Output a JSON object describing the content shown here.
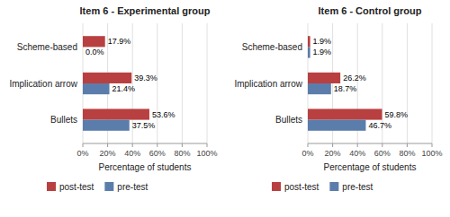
{
  "chart_data": [
    {
      "type": "bar",
      "orientation": "horizontal",
      "title": "Item 6 - Experimental group",
      "categories": [
        "Bullets",
        "Implication arrow",
        "Scheme-based"
      ],
      "series": [
        {
          "name": "post-test",
          "color": "#b94040",
          "values": [
            53.6,
            39.3,
            17.9
          ],
          "value_labels": [
            "53.6%",
            "39.3%",
            "17.9%"
          ]
        },
        {
          "name": "pre-test",
          "color": "#5b7dab",
          "values": [
            37.5,
            21.4,
            0.0
          ],
          "value_labels": [
            "37.5%",
            "21.4%",
            "0.0%"
          ]
        }
      ],
      "xlabel": "Percentage of students",
      "xlim": [
        0,
        100
      ],
      "xticks": [
        {
          "value": 0,
          "label": "0%"
        },
        {
          "value": 20,
          "label": "20%"
        },
        {
          "value": 40,
          "label": "40%"
        },
        {
          "value": 60,
          "label": "60%"
        },
        {
          "value": 80,
          "label": "80%"
        },
        {
          "value": 100,
          "label": "100%"
        }
      ],
      "grid": true,
      "legend": "bottom",
      "data_labels": true
    },
    {
      "type": "bar",
      "orientation": "horizontal",
      "title": "Item 6 - Control group",
      "categories": [
        "Bullets",
        "Implication arrow",
        "Scheme-based"
      ],
      "series": [
        {
          "name": "post-test",
          "color": "#b94040",
          "values": [
            59.8,
            26.2,
            1.9
          ],
          "value_labels": [
            "59.8%",
            "26.2%",
            "1.9%"
          ]
        },
        {
          "name": "pre-test",
          "color": "#5b7dab",
          "values": [
            46.7,
            18.7,
            1.9
          ],
          "value_labels": [
            "46.7%",
            "18.7%",
            "1.9%"
          ]
        }
      ],
      "xlabel": "Percentage of students",
      "xlim": [
        0,
        100
      ],
      "xticks": [
        {
          "value": 0,
          "label": "0%"
        },
        {
          "value": 20,
          "label": "20%"
        },
        {
          "value": 40,
          "label": "40%"
        },
        {
          "value": 60,
          "label": "60%"
        },
        {
          "value": 80,
          "label": "80%"
        },
        {
          "value": 100,
          "label": "100%"
        }
      ],
      "grid": true,
      "legend": "bottom",
      "data_labels": true
    }
  ]
}
